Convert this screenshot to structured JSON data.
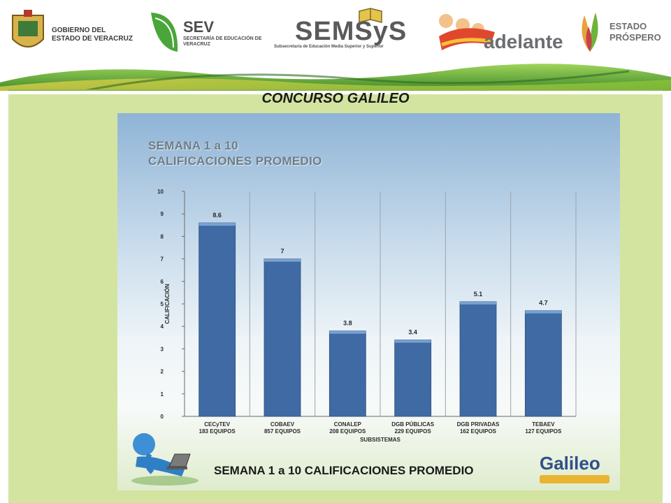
{
  "header": {
    "gobierno": "GOBIERNO DEL ESTADO DE VERACRUZ",
    "sev_title": "SEV",
    "sev_sub": "SECRETARÍA DE EDUCACIÓN DE VERACRUZ",
    "semsys_title": "SEMSyS",
    "semsys_sub": "Subsecretaría de Educación Media Superior y Superior",
    "adelante": "adelante",
    "prospero": "ESTADO PRÓSPERO"
  },
  "page_title": "CONCURSO GALILEO",
  "slide_title_line1": "SEMANA 1 a 10",
  "slide_title_line2": "CALIFICACIONES PROMEDIO",
  "caption": "SEMANA 1 a 10 CALIFICACIONES PROMEDIO",
  "galileo_logo": "Galileo",
  "colors": {
    "bar": "#3f6aa3",
    "panel": "#d3e4a0",
    "band_green": "#6fb43a"
  },
  "chart_data": {
    "type": "bar",
    "title": "SEMANA 1 a 10 CALIFICACIONES PROMEDIO",
    "xlabel": "SUBSISTEMAS",
    "ylabel": "CALIFICACIÓN",
    "ylim": [
      0,
      10
    ],
    "yticks": [
      0,
      1,
      2,
      3,
      4,
      5,
      6,
      7,
      8,
      9,
      10
    ],
    "categories": [
      "CECyTEV",
      "COBAEV",
      "CONALEP",
      "DGB PÚBLICAS",
      "DGB PRIVADAS",
      "TEBAEV"
    ],
    "category_sublabels": [
      "183  EQUIPOS",
      "857 EQUIPOS",
      "208 EQUIPOS",
      "229 EQUIPOS",
      "162 EQUIPOS",
      "127 EQUIPOS"
    ],
    "values": [
      8.6,
      7,
      3.8,
      3.4,
      5.1,
      4.7
    ],
    "value_labels": [
      "8.6",
      "7",
      "3.8",
      "3.4",
      "5.1",
      "4.7"
    ],
    "grid": false,
    "legend": "none"
  }
}
